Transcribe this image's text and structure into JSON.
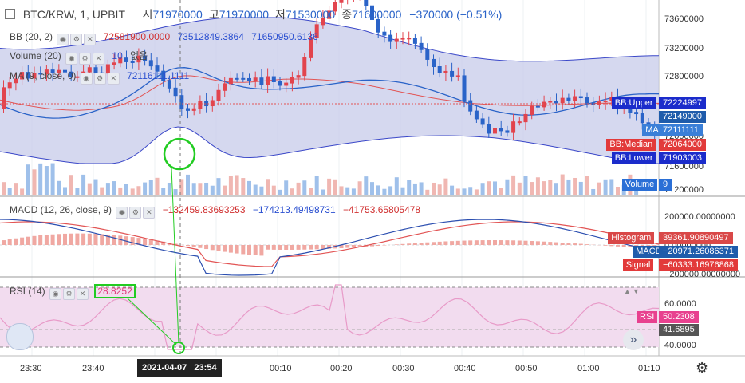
{
  "header": {
    "symbol": "BTC/KRW, 1, UPBIT",
    "ohlc": [
      {
        "label": "시",
        "value": "71970000"
      },
      {
        "label": "고",
        "value": "71970000"
      },
      {
        "label": "저",
        "value": "71530000"
      },
      {
        "label": "종",
        "value": "71600000"
      }
    ],
    "change": "−370000 (−0.51%)"
  },
  "indicators": {
    "bb": {
      "name": "BB (20, 2)",
      "v1": "72581900.0000",
      "v2": "73512849.3864",
      "v3": "71650950.6136"
    },
    "volume": {
      "name": "Volume (20)",
      "v1": "10",
      "v2": "없음"
    },
    "ma": {
      "name": "MA (9, close, 0)",
      "v1": "72116111.1111"
    },
    "macd": {
      "name": "MACD (12, 26, close, 9)",
      "v1": "−132459.83693253",
      "v2": "−174213.49498731",
      "v3": "−41753.65805478"
    },
    "rsi": {
      "name": "RSI (14)",
      "highlight": "28.8252"
    }
  },
  "price_axis": [
    "73600000",
    "73200000",
    "72800000",
    "72400000",
    "72000000",
    "71600000",
    "71200000"
  ],
  "macd_axis": [
    "200000.00000000",
    "0.00000000",
    "−200000.00000000"
  ],
  "rsi_axis": [
    "60.0000",
    "40.0000"
  ],
  "price_tags": [
    {
      "label": "BB:Upper",
      "value": "72224997",
      "color": "#1b2ccb"
    },
    {
      "label": "",
      "value": "72149000",
      "color": "#1f5cab"
    },
    {
      "label": "MA",
      "value": "72111111",
      "color": "#3a7fd8"
    },
    {
      "label": "BB:Median",
      "value": "72064000",
      "color": "#e23a3a"
    },
    {
      "label": "BB:Lower",
      "value": "71903003",
      "color": "#1b2ccb"
    },
    {
      "label": "Volume",
      "value": "9",
      "color": "#2a6fd6"
    }
  ],
  "macd_tags": [
    {
      "label": "Histogram",
      "value": "39361.90890497",
      "color": "#d94848"
    },
    {
      "label": "MACD",
      "value": "−20971.26086371",
      "color": "#1f5cab"
    },
    {
      "label": "Signal",
      "value": "−60333.16976868",
      "color": "#e23a3a"
    }
  ],
  "rsi_tags": [
    {
      "label": "RSI",
      "value": "50.2308",
      "color": "#e8418f"
    },
    {
      "label": "",
      "value": "41.6895",
      "color": "#555"
    }
  ],
  "time_axis": [
    "23:30",
    "23:40",
    "00:10",
    "00:20",
    "00:30",
    "00:40",
    "00:50",
    "01:00",
    "01:10"
  ],
  "crosshair_time": "2021-04-07   23:54",
  "icons": {
    "settings": "gear-icon",
    "scroll": "double-chevron-right-icon",
    "logo": "tradingview-logo-icon"
  },
  "colors": {
    "up": "#e2444d",
    "down": "#2a63c8",
    "bb_fill": "#c7cbea",
    "rsi_fill": "#f2dcef",
    "annotation": "#22cc22"
  }
}
